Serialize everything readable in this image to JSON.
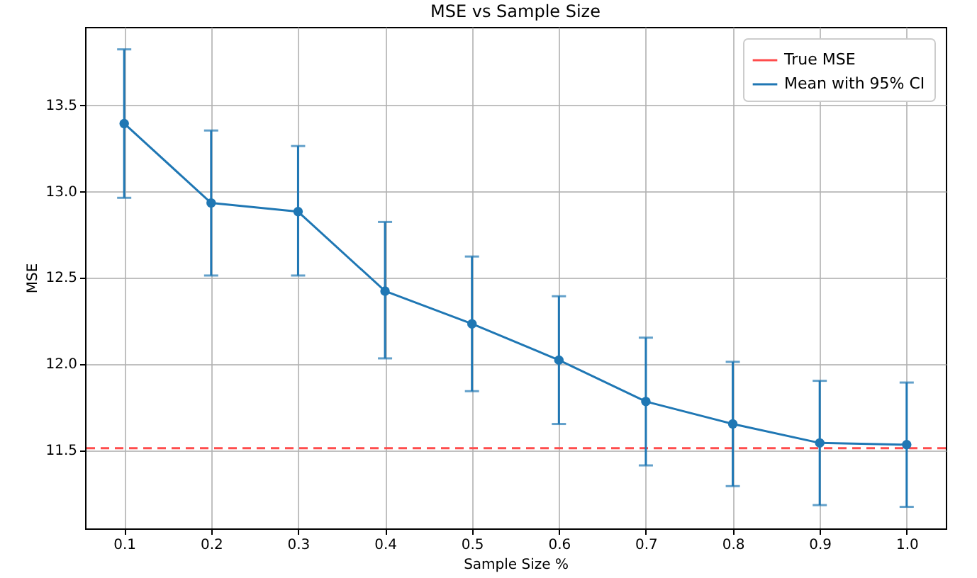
{
  "chart_data": {
    "type": "line",
    "title": "MSE vs Sample Size",
    "xlabel": "Sample Size %",
    "ylabel": "MSE",
    "x": [
      0.1,
      0.2,
      0.3,
      0.4,
      0.5,
      0.6,
      0.7,
      0.8,
      0.9,
      1.0
    ],
    "series": [
      {
        "name": "Mean with 95% CI",
        "color": "#1f77b4",
        "values": [
          13.39,
          12.93,
          12.88,
          12.42,
          12.23,
          12.02,
          11.78,
          11.65,
          11.54,
          11.53
        ],
        "errors": [
          [
            12.96,
            13.82
          ],
          [
            12.51,
            13.35
          ],
          [
            12.51,
            13.26
          ],
          [
            12.03,
            12.82
          ],
          [
            11.84,
            12.62
          ],
          [
            11.65,
            12.39
          ],
          [
            11.41,
            12.15
          ],
          [
            11.29,
            12.01
          ],
          [
            11.18,
            11.9
          ],
          [
            11.17,
            11.89
          ]
        ]
      }
    ],
    "ref_lines": [
      {
        "axis": "y",
        "value": 11.51,
        "label": "True MSE",
        "color": "#ff4c4c",
        "line_style": "dashed"
      }
    ],
    "xlim": [
      0.055,
      1.045
    ],
    "ylim": [
      11.045,
      13.95
    ],
    "xticks": [
      0.1,
      0.2,
      0.3,
      0.4,
      0.5,
      0.6,
      0.7,
      0.8,
      0.9,
      {
        "value": 1,
        "label": "1.0"
      }
    ],
    "yticks": [
      11.5,
      {
        "value": 12,
        "label": "12.0"
      },
      12.5,
      {
        "value": 13,
        "label": "13.0"
      },
      13.5
    ],
    "grid": true,
    "legend": "top right",
    "marker": "circle",
    "line_style": "solid"
  }
}
